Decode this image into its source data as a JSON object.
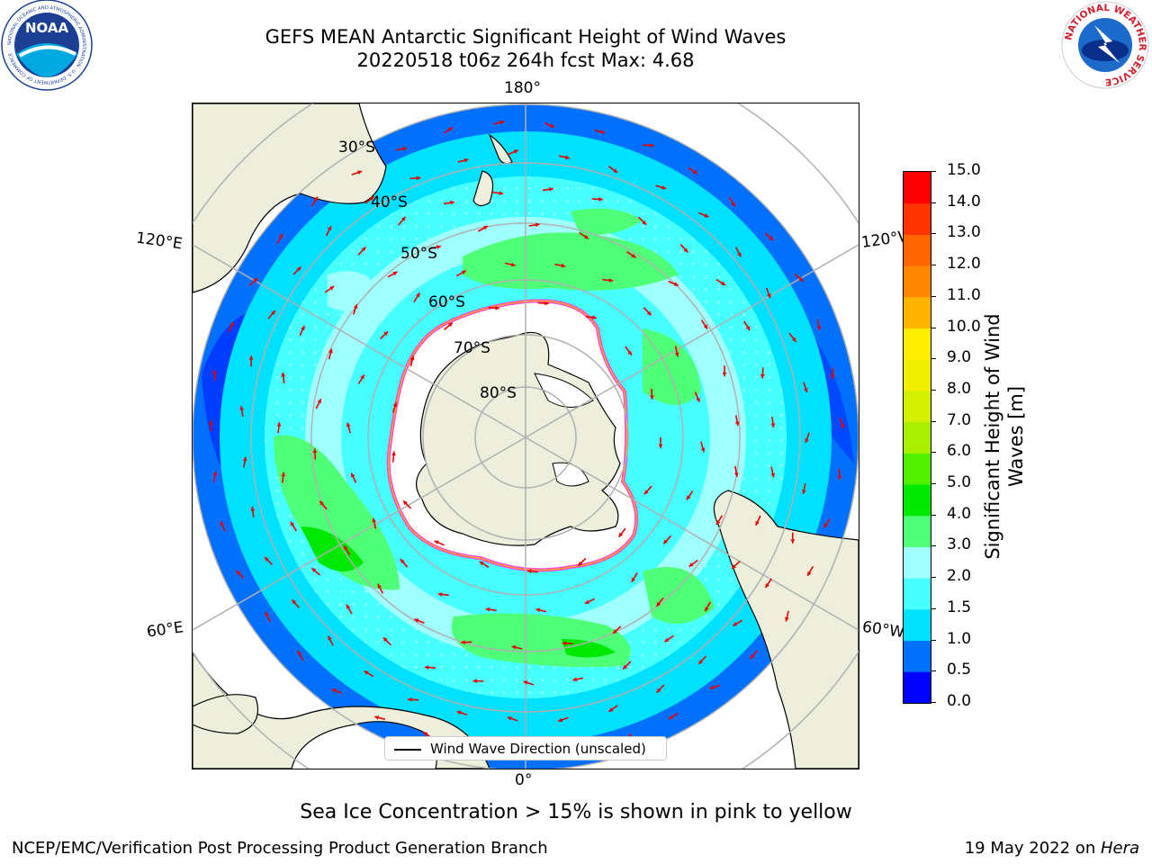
{
  "header": {
    "title_line1": "GEFS MEAN Antarctic Significant Height of Wind Waves",
    "title_line2": "20220518 t06z 264h fcst   Max: 4.68"
  },
  "logos": {
    "left": {
      "icon": "noaa-logo-icon",
      "text": "NOAA",
      "ring_text": "NATIONAL OCEANIC AND ATMOSPHERIC ADMINISTRATION · U.S. DEPARTMENT OF COMMERCE"
    },
    "right": {
      "icon": "nws-logo-icon",
      "ring_text": "NATIONAL WEATHER SERVICE"
    }
  },
  "map": {
    "projection": "south-polar-stereographic",
    "longitude_labels": {
      "top": "180°",
      "bottom": "0°",
      "upper_left": "120°E",
      "upper_right": "120°W",
      "lower_left": "60°E",
      "lower_right": "60°W"
    },
    "latitude_labels": [
      "30°S",
      "40°S",
      "50°S",
      "60°S",
      "70°S",
      "80°S"
    ],
    "legend_label": "Wind Wave Direction (unscaled)",
    "colors": {
      "land": "#eeeedd",
      "ice": "#ffffff",
      "ice_edge": "#ff44dd",
      "arrow": "#e60000",
      "grid": "#b0b0b0"
    }
  },
  "colorbar": {
    "label": "Significant Height of Wind Waves [m]",
    "label_line1": "Significant Height of Wind",
    "label_line2": "Waves [m]",
    "ticks": [
      "15.0",
      "14.0",
      "13.0",
      "12.0",
      "11.0",
      "10.0",
      "9.0",
      "8.0",
      "7.0",
      "6.0",
      "5.0",
      "4.0",
      "3.0",
      "2.0",
      "1.5",
      "1.0",
      "0.5",
      "0.0"
    ],
    "colors_bottom_to_top": [
      "#0000ff",
      "#0070ff",
      "#00e0ff",
      "#48ffff",
      "#a0ffff",
      "#50ff78",
      "#00e800",
      "#50f000",
      "#a8f000",
      "#d2f000",
      "#f0f000",
      "#ffee00",
      "#ffb400",
      "#ff8800",
      "#ff6600",
      "#ff3300",
      "#ff0000"
    ]
  },
  "footer": {
    "note": "Sea Ice Concentration > 15% is shown in pink to yellow",
    "left": "NCEP/EMC/Verification Post Processing Product Generation Branch",
    "right_date": "19 May 2022 on ",
    "right_system": "Hera"
  }
}
